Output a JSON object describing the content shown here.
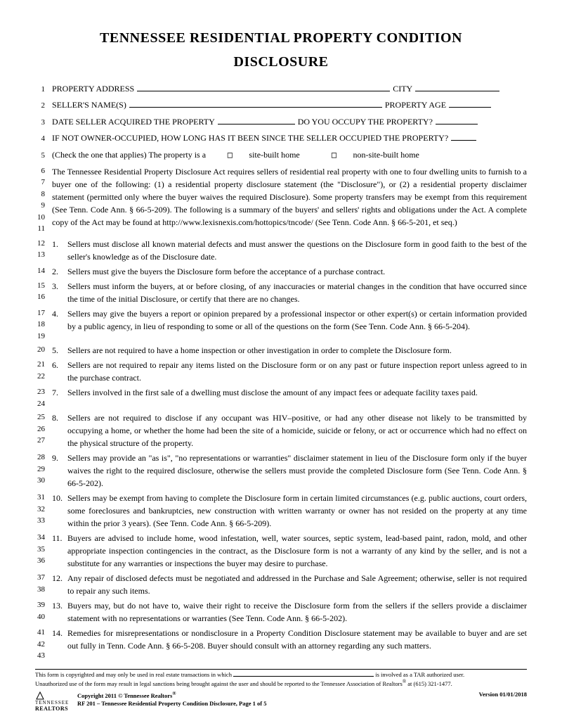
{
  "title": "TENNESSEE RESIDENTIAL PROPERTY CONDITION",
  "subtitle": "DISCLOSURE",
  "form_lines": [
    {
      "nums": [
        "1"
      ],
      "label_a": "PROPERTY ADDRESS",
      "blank_a": 360,
      "label_b": " CITY ",
      "blank_b": 120
    },
    {
      "nums": [
        "2"
      ],
      "label_a": "SELLER'S NAME(S) ",
      "blank_a": 360,
      "label_b": " PROPERTY AGE ",
      "blank_b": 60
    },
    {
      "nums": [
        "3"
      ],
      "label_a": "DATE SELLER ACQUIRED THE PROPERTY ",
      "blank_a": 110,
      "label_b": " DO YOU OCCUPY THE PROPERTY? ",
      "blank_b": 60
    },
    {
      "nums": [
        "4"
      ],
      "label_a": "IF NOT OWNER-OCCUPIED, HOW LONG HAS IT BEEN SINCE THE SELLER OCCUPIED THE PROPERTY? ",
      "blank_a": 36,
      "label_b": "",
      "blank_b": 0
    }
  ],
  "checkbox_line": {
    "nums": [
      "5"
    ],
    "prefix": "(Check the one that applies)    The property is a",
    "opt1": "site-built home",
    "opt2": "non-site-built home"
  },
  "intro": {
    "nums": [
      "6",
      "7",
      "8",
      "9",
      "10",
      "11"
    ],
    "text": "The Tennessee Residential Property Disclosure Act requires sellers of residential real property with one to four dwelling units to furnish to a buyer one of the following: (1) a residential property disclosure statement (the \"Disclosure\"), or (2) a residential property disclaimer statement (permitted only where the buyer waives the required Disclosure). Some property transfers may be exempt from this requirement (See Tenn. Code Ann. § 66-5-209). The following is a summary of the buyers' and sellers' rights and obligations under the Act.  A complete copy of the Act may be found at http://www.lexisnexis.com/hottopics/tncode/  (See Tenn. Code Ann. § 66-5-201, et seq.)"
  },
  "items": [
    {
      "nums": [
        "12",
        "13"
      ],
      "n": "1.",
      "text": "Sellers must disclose all known material defects and must answer the questions on the Disclosure form in good faith to the best of the seller's knowledge as of the Disclosure date."
    },
    {
      "nums": [
        "14"
      ],
      "n": "2.",
      "text": "Sellers must give the buyers the Disclosure form before the acceptance of a purchase contract."
    },
    {
      "nums": [
        "15",
        "16"
      ],
      "n": "3.",
      "text": "Sellers must inform the buyers, at or before closing, of any inaccuracies or material changes in the condition that have occurred since the time of the initial Disclosure, or certify that there are no changes."
    },
    {
      "nums": [
        "17",
        "18",
        "19"
      ],
      "n": "4.",
      "text": "Sellers may give the buyers a report or opinion prepared by a professional inspector or other expert(s) or certain information provided by a public agency, in lieu of responding to some or all of the questions on the form (See Tenn. Code Ann. § 66-5-204)."
    },
    {
      "nums": [
        "20"
      ],
      "n": "5.",
      "text": "Sellers are not required to have a home inspection or other investigation in order to complete the Disclosure form."
    },
    {
      "nums": [
        "21",
        "22"
      ],
      "n": "6.",
      "text": "Sellers are not required to repair any items listed on the Disclosure form or on any past or future inspection report unless agreed to in the purchase contract."
    },
    {
      "nums": [
        "23",
        "24"
      ],
      "n": "7.",
      "text": "Sellers involved in the first sale of a dwelling must disclose the amount of any impact fees or adequate facility taxes paid."
    },
    {
      "nums": [
        "25",
        "26",
        "27"
      ],
      "n": "8.",
      "text": "Sellers are not required to disclose if any occupant was HIV–positive, or had any other disease not likely to be transmitted by occupying a home, or whether the home had been the site of a homicide, suicide or felony, or act or occurrence which had no effect on the physical structure of the property."
    },
    {
      "nums": [
        "28",
        "29",
        "30"
      ],
      "n": "9.",
      "text": "Sellers may provide an \"as is\", \"no representations or warranties\" disclaimer statement in lieu of the Disclosure form only if the buyer waives the right to the required disclosure, otherwise the sellers must provide the completed Disclosure form (See Tenn. Code Ann. § 66-5-202)."
    },
    {
      "nums": [
        "31",
        "32",
        "33"
      ],
      "n": "10.",
      "text": "Sellers may be exempt from having to complete the Disclosure form in certain limited circumstances (e.g. public auctions, court orders, some foreclosures and bankruptcies, new construction with written warranty or owner has not resided on the property at any time within the prior 3 years).  (See Tenn. Code Ann. § 66-5-209)."
    },
    {
      "nums": [
        "34",
        "35",
        "36"
      ],
      "n": "11.",
      "text": "Buyers are advised to include home, wood infestation, well, water sources, septic system, lead-based paint, radon, mold, and other appropriate inspection contingencies in the contract, as the Disclosure form is not a warranty of any kind by the seller, and is not a substitute for any warranties or inspections the buyer may desire to purchase."
    },
    {
      "nums": [
        "37",
        "38"
      ],
      "n": "12.",
      "text": "Any repair of disclosed defects must be negotiated and addressed in the Purchase and Sale Agreement; otherwise, seller is not required to repair any such items."
    },
    {
      "nums": [
        "39",
        "40"
      ],
      "n": "13.",
      "text": "Buyers may, but do not have to, waive their right to receive the Disclosure form from the sellers if the sellers provide a disclaimer statement with no representations or warranties (See Tenn. Code Ann. § 66-5-202)."
    },
    {
      "nums": [
        "41",
        "42",
        "43"
      ],
      "n": "14.",
      "text": "Remedies for misrepresentations or nondisclosure in a Property Condition Disclosure statement may be available to buyer and are set out fully in Tenn. Code Ann. § 66-5-208. Buyer should consult with an attorney regarding any such matters."
    }
  ],
  "footer": {
    "disclaimer1": "This form is copyrighted and may only be used in real estate transactions in which ",
    "disclaimer2": " is involved as a TAR authorized user.",
    "disclaimer3": "Unauthorized use of the form may result in legal sanctions being brought against the user and should be reported to the Tennessee Association of Realtors",
    "disclaimer4": " at (615) 321-1477.",
    "brand_top": "TENNESSEE",
    "brand_bot": "REALTORS",
    "copyright": "Copyright 2011 © Tennessee Realtors",
    "form_id": "RF 201 – Tennessee Residential Property Condition Disclosure, Page 1 of 5",
    "version": "Version 01/01/2018"
  }
}
